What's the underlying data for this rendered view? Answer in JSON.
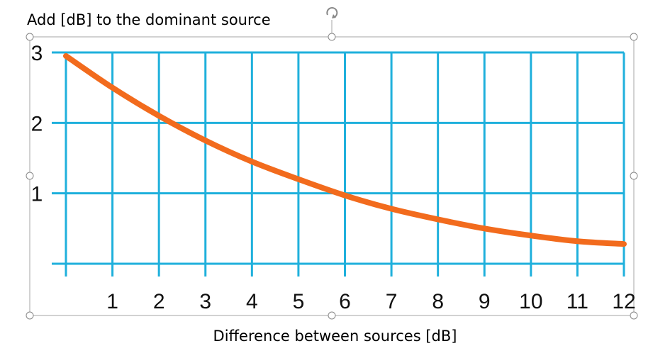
{
  "labels": {
    "ylabel": "Add [dB] to the dominant source",
    "xlabel": "Difference between sources [dB]"
  },
  "chart_data": {
    "type": "line",
    "title": "",
    "xlabel": "Difference between sources [dB]",
    "ylabel": "Add [dB] to the dominant source",
    "xlim": [
      0,
      12
    ],
    "ylim": [
      0,
      3
    ],
    "xticks": [
      "1",
      "2",
      "3",
      "4",
      "5",
      "6",
      "7",
      "8",
      "9",
      "10",
      "11",
      "12"
    ],
    "yticks": [
      "1",
      "2",
      "3"
    ],
    "grid": true,
    "series": [
      {
        "color": "#f26b1d",
        "x": [
          0,
          1,
          2,
          3,
          4,
          5,
          6,
          7,
          8,
          9,
          10,
          11,
          12
        ],
        "y": [
          2.95,
          2.5,
          2.1,
          1.75,
          1.45,
          1.2,
          0.97,
          0.78,
          0.63,
          0.5,
          0.4,
          0.32,
          0.28
        ]
      }
    ]
  },
  "colors": {
    "grid": "#1fb0dc",
    "curve": "#f26b1d",
    "frame": "#a6a6a6"
  },
  "icons": {
    "rotate_handle": "rotate-icon"
  }
}
